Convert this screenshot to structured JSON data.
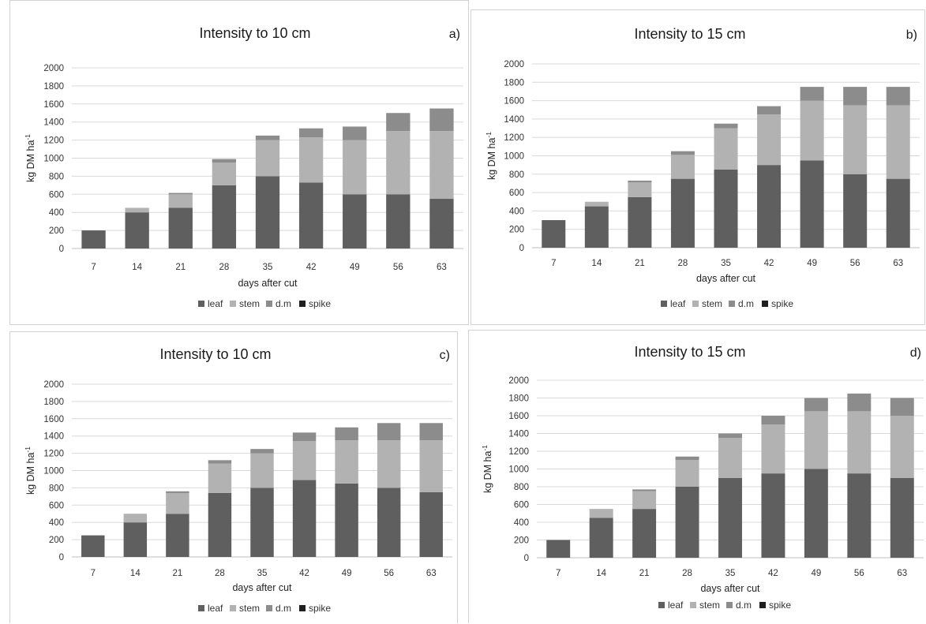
{
  "colors": {
    "leaf": "#5f5f5f",
    "stem": "#b2b2b2",
    "dm": "#8c8c8c",
    "spike": "#1f1f1f",
    "grid": "#d9d9d9",
    "border": "#cfcfcf"
  },
  "chart_data": [
    {
      "type": "bar",
      "stacked": true,
      "title": "Intensity to 10 cm",
      "panel_label": "a)",
      "xlabel": "days after cut",
      "ylabel_main": "kg DM ha",
      "ylabel_sup": "-1",
      "ylim": [
        0,
        2000
      ],
      "yticks": [
        "0",
        "200",
        "400",
        "600",
        "800",
        "1000",
        "1200",
        "1400",
        "1600",
        "1800",
        "2000"
      ],
      "categories": [
        "7",
        "14",
        "21",
        "28",
        "35",
        "42",
        "49",
        "56",
        "63"
      ],
      "legend_position": "bottom",
      "series": [
        {
          "name": "leaf",
          "values": [
            200,
            400,
            450,
            700,
            800,
            730,
            600,
            600,
            550
          ]
        },
        {
          "name": "stem",
          "values": [
            0,
            50,
            150,
            250,
            400,
            500,
            600,
            700,
            750
          ]
        },
        {
          "name": "d.m",
          "values": [
            0,
            0,
            15,
            40,
            50,
            100,
            150,
            200,
            250
          ]
        },
        {
          "name": "spike",
          "values": [
            0,
            0,
            0,
            0,
            0,
            0,
            0,
            0,
            0
          ]
        }
      ]
    },
    {
      "type": "bar",
      "stacked": true,
      "title": "Intensity to 15 cm",
      "panel_label": "b)",
      "xlabel": "days after cut",
      "ylabel_main": "kg DM ha",
      "ylabel_sup": "-1",
      "ylim": [
        0,
        2000
      ],
      "yticks": [
        "0",
        "200",
        "400",
        "600",
        "800",
        "1000",
        "1200",
        "1400",
        "1600",
        "1800",
        "2000"
      ],
      "categories": [
        "7",
        "14",
        "21",
        "28",
        "35",
        "42",
        "49",
        "56",
        "63"
      ],
      "legend_position": "bottom",
      "series": [
        {
          "name": "leaf",
          "values": [
            300,
            450,
            550,
            750,
            850,
            900,
            950,
            800,
            750
          ]
        },
        {
          "name": "stem",
          "values": [
            0,
            50,
            160,
            260,
            450,
            550,
            650,
            750,
            800
          ]
        },
        {
          "name": "d.m",
          "values": [
            0,
            0,
            20,
            40,
            50,
            90,
            150,
            200,
            200
          ]
        },
        {
          "name": "spike",
          "values": [
            0,
            0,
            0,
            0,
            0,
            0,
            0,
            0,
            0
          ]
        }
      ]
    },
    {
      "type": "bar",
      "stacked": true,
      "title": "Intensity to 10 cm",
      "panel_label": "c)",
      "xlabel": "days after cut",
      "ylabel_main": "kg DM ha",
      "ylabel_sup": "-1",
      "ylim": [
        0,
        2000
      ],
      "yticks": [
        "0",
        "200",
        "400",
        "600",
        "800",
        "1000",
        "1200",
        "1400",
        "1600",
        "1800",
        "2000"
      ],
      "categories": [
        "7",
        "14",
        "21",
        "28",
        "35",
        "42",
        "49",
        "56",
        "63"
      ],
      "legend_position": "bottom",
      "series": [
        {
          "name": "leaf",
          "values": [
            250,
            400,
            500,
            740,
            800,
            890,
            850,
            800,
            750
          ]
        },
        {
          "name": "stem",
          "values": [
            0,
            100,
            240,
            340,
            400,
            450,
            500,
            550,
            600
          ]
        },
        {
          "name": "d.m",
          "values": [
            0,
            0,
            20,
            40,
            50,
            100,
            150,
            200,
            200
          ]
        },
        {
          "name": "spike",
          "values": [
            0,
            0,
            0,
            0,
            0,
            0,
            0,
            0,
            0
          ]
        }
      ]
    },
    {
      "type": "bar",
      "stacked": true,
      "title": "Intensity to 15 cm",
      "panel_label": "d)",
      "xlabel": "days after cut",
      "ylabel_main": "kg DM ha",
      "ylabel_sup": "-1",
      "ylim": [
        0,
        2000
      ],
      "yticks": [
        "0",
        "200",
        "400",
        "600",
        "800",
        "1000",
        "1200",
        "1400",
        "1600",
        "1800",
        "2000"
      ],
      "categories": [
        "7",
        "14",
        "21",
        "28",
        "35",
        "42",
        "49",
        "56",
        "63"
      ],
      "legend_position": "bottom",
      "series": [
        {
          "name": "leaf",
          "values": [
            200,
            450,
            550,
            800,
            900,
            950,
            1000,
            950,
            900
          ]
        },
        {
          "name": "stem",
          "values": [
            0,
            100,
            200,
            300,
            450,
            550,
            650,
            700,
            700
          ]
        },
        {
          "name": "d.m",
          "values": [
            0,
            0,
            20,
            40,
            50,
            100,
            150,
            200,
            200
          ]
        },
        {
          "name": "spike",
          "values": [
            0,
            0,
            0,
            0,
            0,
            0,
            0,
            0,
            0
          ]
        }
      ]
    }
  ]
}
